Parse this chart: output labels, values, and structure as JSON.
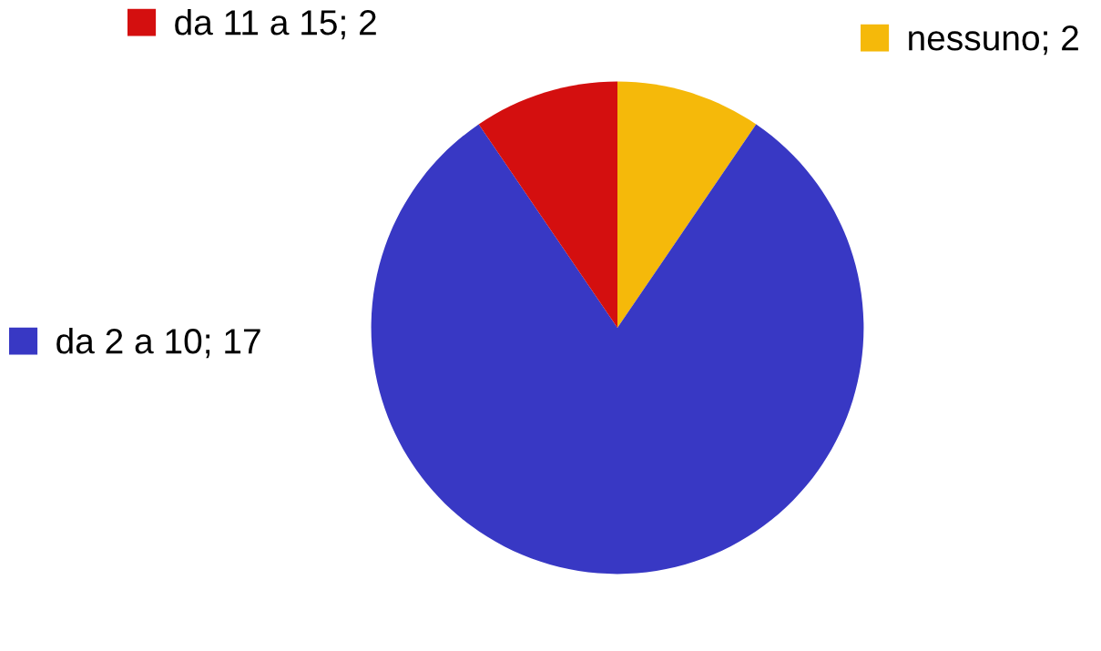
{
  "chart_data": {
    "type": "pie",
    "categories": [
      "nessuno; 2",
      "da 2 a 10; 17",
      "da 11 a 15; 2"
    ],
    "values": [
      2,
      17,
      2
    ],
    "colors": [
      "#f5b90a",
      "#3838c4",
      "#d40f0f"
    ],
    "legend": "top"
  }
}
